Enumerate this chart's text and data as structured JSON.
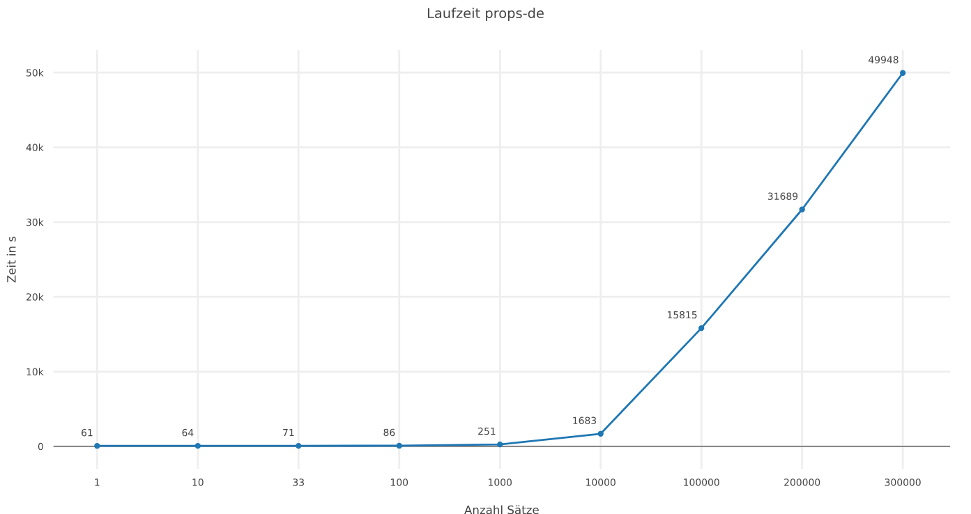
{
  "chart_data": {
    "type": "line",
    "title": "Laufzeit props-de",
    "xlabel": "Anzahl Sätze",
    "ylabel": "Zeit in s",
    "categories": [
      "1",
      "10",
      "33",
      "100",
      "1000",
      "10000",
      "100000",
      "200000",
      "300000"
    ],
    "series": [
      {
        "color": "#1f77b4",
        "values": [
          61,
          64,
          71,
          86,
          251,
          1683,
          15815,
          31689,
          49948
        ]
      }
    ],
    "ylim": [
      -3000,
      53000
    ],
    "yticks": [
      0,
      {
        "value": 10000,
        "label": "10k"
      },
      {
        "value": 20000,
        "label": "20k"
      },
      {
        "value": 30000,
        "label": "30k"
      },
      {
        "value": 40000,
        "label": "40k"
      },
      {
        "value": 50000,
        "label": "50k"
      }
    ],
    "ref_lines": [
      {
        "axis": "y",
        "value": 0,
        "color": "#444444"
      }
    ],
    "data_labels": true,
    "grid": true,
    "marker": "circle",
    "line_style": "solid",
    "legend": false
  }
}
